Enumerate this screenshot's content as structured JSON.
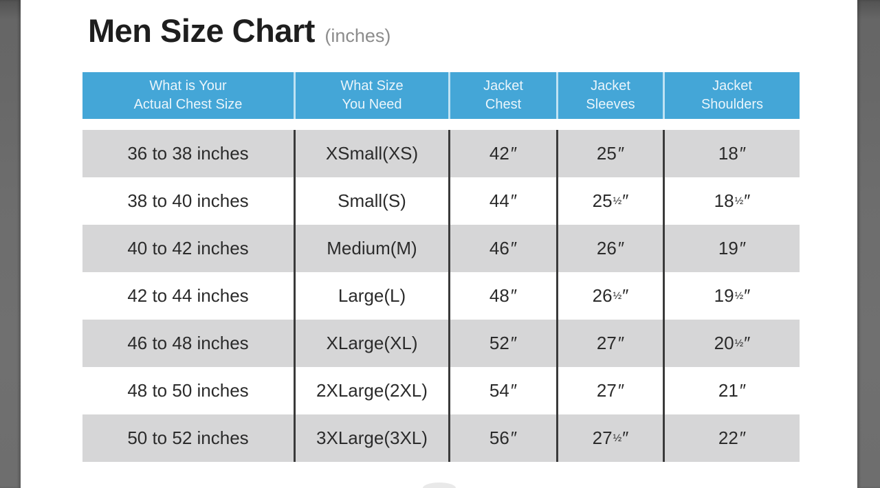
{
  "header": {
    "title": "Men Size Chart",
    "subtitle": "(inches)"
  },
  "table": {
    "inch_mark": "″",
    "columns": [
      {
        "line1": "What is Your",
        "line2": "Actual Chest Size"
      },
      {
        "line1": "What Size",
        "line2": "You Need"
      },
      {
        "line1": "Jacket",
        "line2": "Chest"
      },
      {
        "line1": "Jacket",
        "line2": "Sleeves"
      },
      {
        "line1": "Jacket",
        "line2": "Shoulders"
      }
    ],
    "rows": [
      {
        "chest_range": "36 to 38 inches",
        "size": "XSmall(XS)",
        "chest": "42",
        "chest_frac": "",
        "sleeves": "25",
        "sleeves_frac": "",
        "shoulders": "18",
        "shoulders_frac": ""
      },
      {
        "chest_range": "38 to 40 inches",
        "size": "Small(S)",
        "chest": "44",
        "chest_frac": "",
        "sleeves": "25",
        "sleeves_frac": "½",
        "shoulders": "18",
        "shoulders_frac": "½"
      },
      {
        "chest_range": "40 to 42 inches",
        "size": "Medium(M)",
        "chest": "46",
        "chest_frac": "",
        "sleeves": "26",
        "sleeves_frac": "",
        "shoulders": "19",
        "shoulders_frac": ""
      },
      {
        "chest_range": "42 to 44 inches",
        "size": "Large(L)",
        "chest": "48",
        "chest_frac": "",
        "sleeves": "26",
        "sleeves_frac": "½",
        "shoulders": "19",
        "shoulders_frac": "½"
      },
      {
        "chest_range": "46 to 48 inches",
        "size": "XLarge(XL)",
        "chest": "52",
        "chest_frac": "",
        "sleeves": "27",
        "sleeves_frac": "",
        "shoulders": "20",
        "shoulders_frac": "½"
      },
      {
        "chest_range": "48 to 50 inches",
        "size": "2XLarge(2XL)",
        "chest": "54",
        "chest_frac": "",
        "sleeves": "27",
        "sleeves_frac": "",
        "shoulders": "21",
        "shoulders_frac": ""
      },
      {
        "chest_range": "50 to 52 inches",
        "size": "3XLarge(3XL)",
        "chest": "56",
        "chest_frac": "",
        "sleeves": "27",
        "sleeves_frac": "½",
        "shoulders": "22",
        "shoulders_frac": ""
      }
    ]
  },
  "chart_data": {
    "type": "table",
    "title": "Men Size Chart (inches)",
    "columns": [
      "What is Your Actual Chest Size",
      "What Size You Need",
      "Jacket Chest",
      "Jacket Sleeves",
      "Jacket Shoulders"
    ],
    "rows": [
      [
        "36 to 38 inches",
        "XSmall(XS)",
        "42″",
        "25″",
        "18″"
      ],
      [
        "38 to 40 inches",
        "Small(S)",
        "44″",
        "25½″",
        "18½″"
      ],
      [
        "40 to 42 inches",
        "Medium(M)",
        "46″",
        "26″",
        "19″"
      ],
      [
        "42 to 44 inches",
        "Large(L)",
        "48″",
        "26½″",
        "19½″"
      ],
      [
        "46 to 48 inches",
        "XLarge(XL)",
        "52″",
        "27″",
        "20½″"
      ],
      [
        "48 to 50 inches",
        "2XLarge(2XL)",
        "54″",
        "27″",
        "21″"
      ],
      [
        "50 to 52 inches",
        "3XLarge(3XL)",
        "56″",
        "27½″",
        "22″"
      ]
    ]
  },
  "colors": {
    "header_bg": "#44a6d7",
    "header_text": "#eaf5fb",
    "row_alt_bg": "#d6d6d7",
    "body_text": "#2b2b2b",
    "column_divider": "#3a3a3a",
    "side_strip": "#6d6d6d",
    "subtitle_text": "#8c8c8c"
  }
}
